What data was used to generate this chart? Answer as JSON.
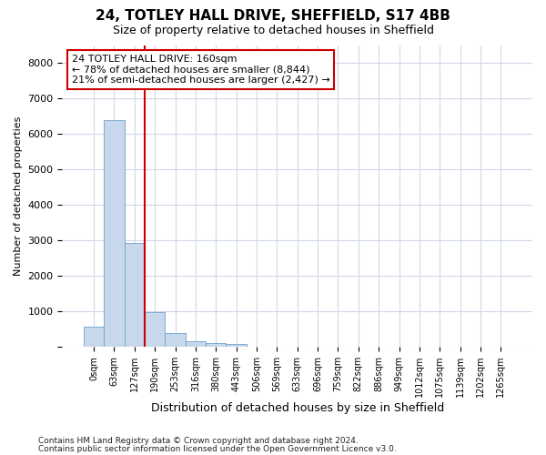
{
  "title1": "24, TOTLEY HALL DRIVE, SHEFFIELD, S17 4BB",
  "title2": "Size of property relative to detached houses in Sheffield",
  "xlabel": "Distribution of detached houses by size in Sheffield",
  "ylabel": "Number of detached properties",
  "footer1": "Contains HM Land Registry data © Crown copyright and database right 2024.",
  "footer2": "Contains public sector information licensed under the Open Government Licence v3.0.",
  "annotation_line1": "24 TOTLEY HALL DRIVE: 160sqm",
  "annotation_line2": "← 78% of detached houses are smaller (8,844)",
  "annotation_line3": "21% of semi-detached houses are larger (2,427) →",
  "bar_labels": [
    "0sqm",
    "63sqm",
    "127sqm",
    "190sqm",
    "253sqm",
    "316sqm",
    "380sqm",
    "443sqm",
    "506sqm",
    "569sqm",
    "633sqm",
    "696sqm",
    "759sqm",
    "822sqm",
    "886sqm",
    "949sqm",
    "1012sqm",
    "1075sqm",
    "1139sqm",
    "1202sqm",
    "1265sqm"
  ],
  "bar_values": [
    560,
    6400,
    2920,
    980,
    380,
    170,
    120,
    75,
    0,
    0,
    0,
    0,
    0,
    0,
    0,
    0,
    0,
    0,
    0,
    0,
    0
  ],
  "bar_color": "#c8d8ec",
  "bar_edgecolor": "#7aaad0",
  "vline_color": "#cc0000",
  "ylim": [
    0,
    8500
  ],
  "yticks": [
    0,
    1000,
    2000,
    3000,
    4000,
    5000,
    6000,
    7000,
    8000
  ],
  "background_color": "#ffffff",
  "plot_bg_color": "#ffffff",
  "grid_color": "#d0d8e8",
  "annotation_box_edgecolor": "#cc0000"
}
